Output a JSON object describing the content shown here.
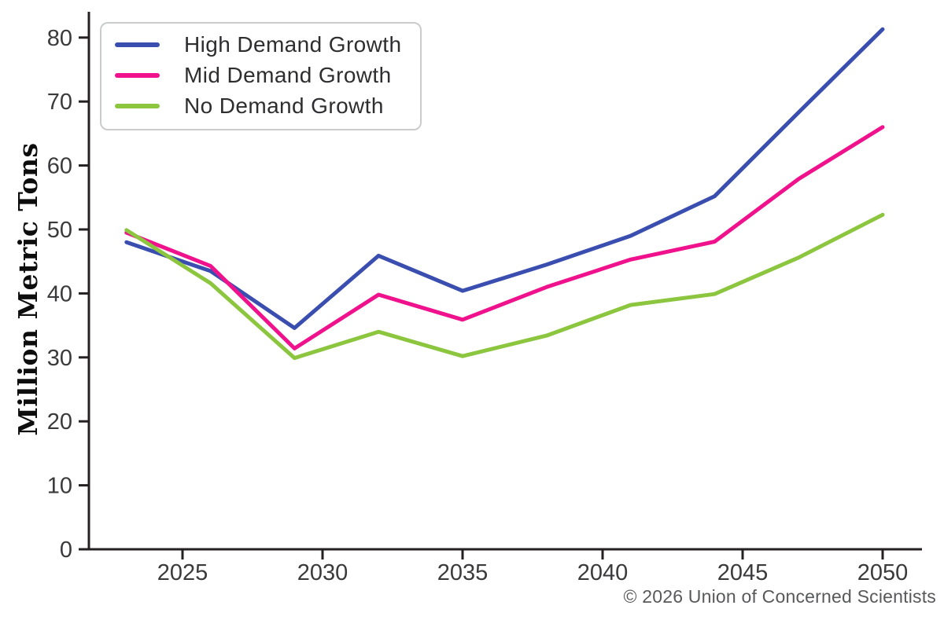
{
  "chart_data": {
    "type": "line",
    "title": "",
    "xlabel": "",
    "ylabel": "Million Metric Tons",
    "x": [
      2023,
      2026,
      2029,
      2032,
      2035,
      2038,
      2041,
      2044,
      2047,
      2050
    ],
    "series": [
      {
        "name": "High Demand Growth",
        "color": "#3a4eb0",
        "values": [
          48.0,
          43.5,
          34.6,
          45.9,
          40.4,
          44.5,
          49.0,
          55.2,
          68.3,
          81.3
        ]
      },
      {
        "name": "Mid Demand Growth",
        "color": "#ef128c",
        "values": [
          49.5,
          44.3,
          31.4,
          39.8,
          35.9,
          41.0,
          45.3,
          48.1,
          57.9,
          66.0
        ]
      },
      {
        "name": "No Demand Growth",
        "color": "#8cc63f",
        "values": [
          49.9,
          41.6,
          29.9,
          34.0,
          30.2,
          33.4,
          38.2,
          39.9,
          45.6,
          52.3
        ]
      }
    ],
    "x_ticks": [
      2025,
      2030,
      2035,
      2040,
      2045,
      2050
    ],
    "y_ticks": [
      0,
      10,
      20,
      30,
      40,
      50,
      60,
      70,
      80
    ],
    "xlim": [
      2021.7,
      2052
    ],
    "ylim": [
      0,
      84
    ],
    "grid": false,
    "legend_position": "upper-left",
    "axis_color": "#252122",
    "tick_label_color": "#3a3a3c",
    "note_color": "#58595b",
    "source_note": "© 2026 Union of Concerned Scientists"
  }
}
